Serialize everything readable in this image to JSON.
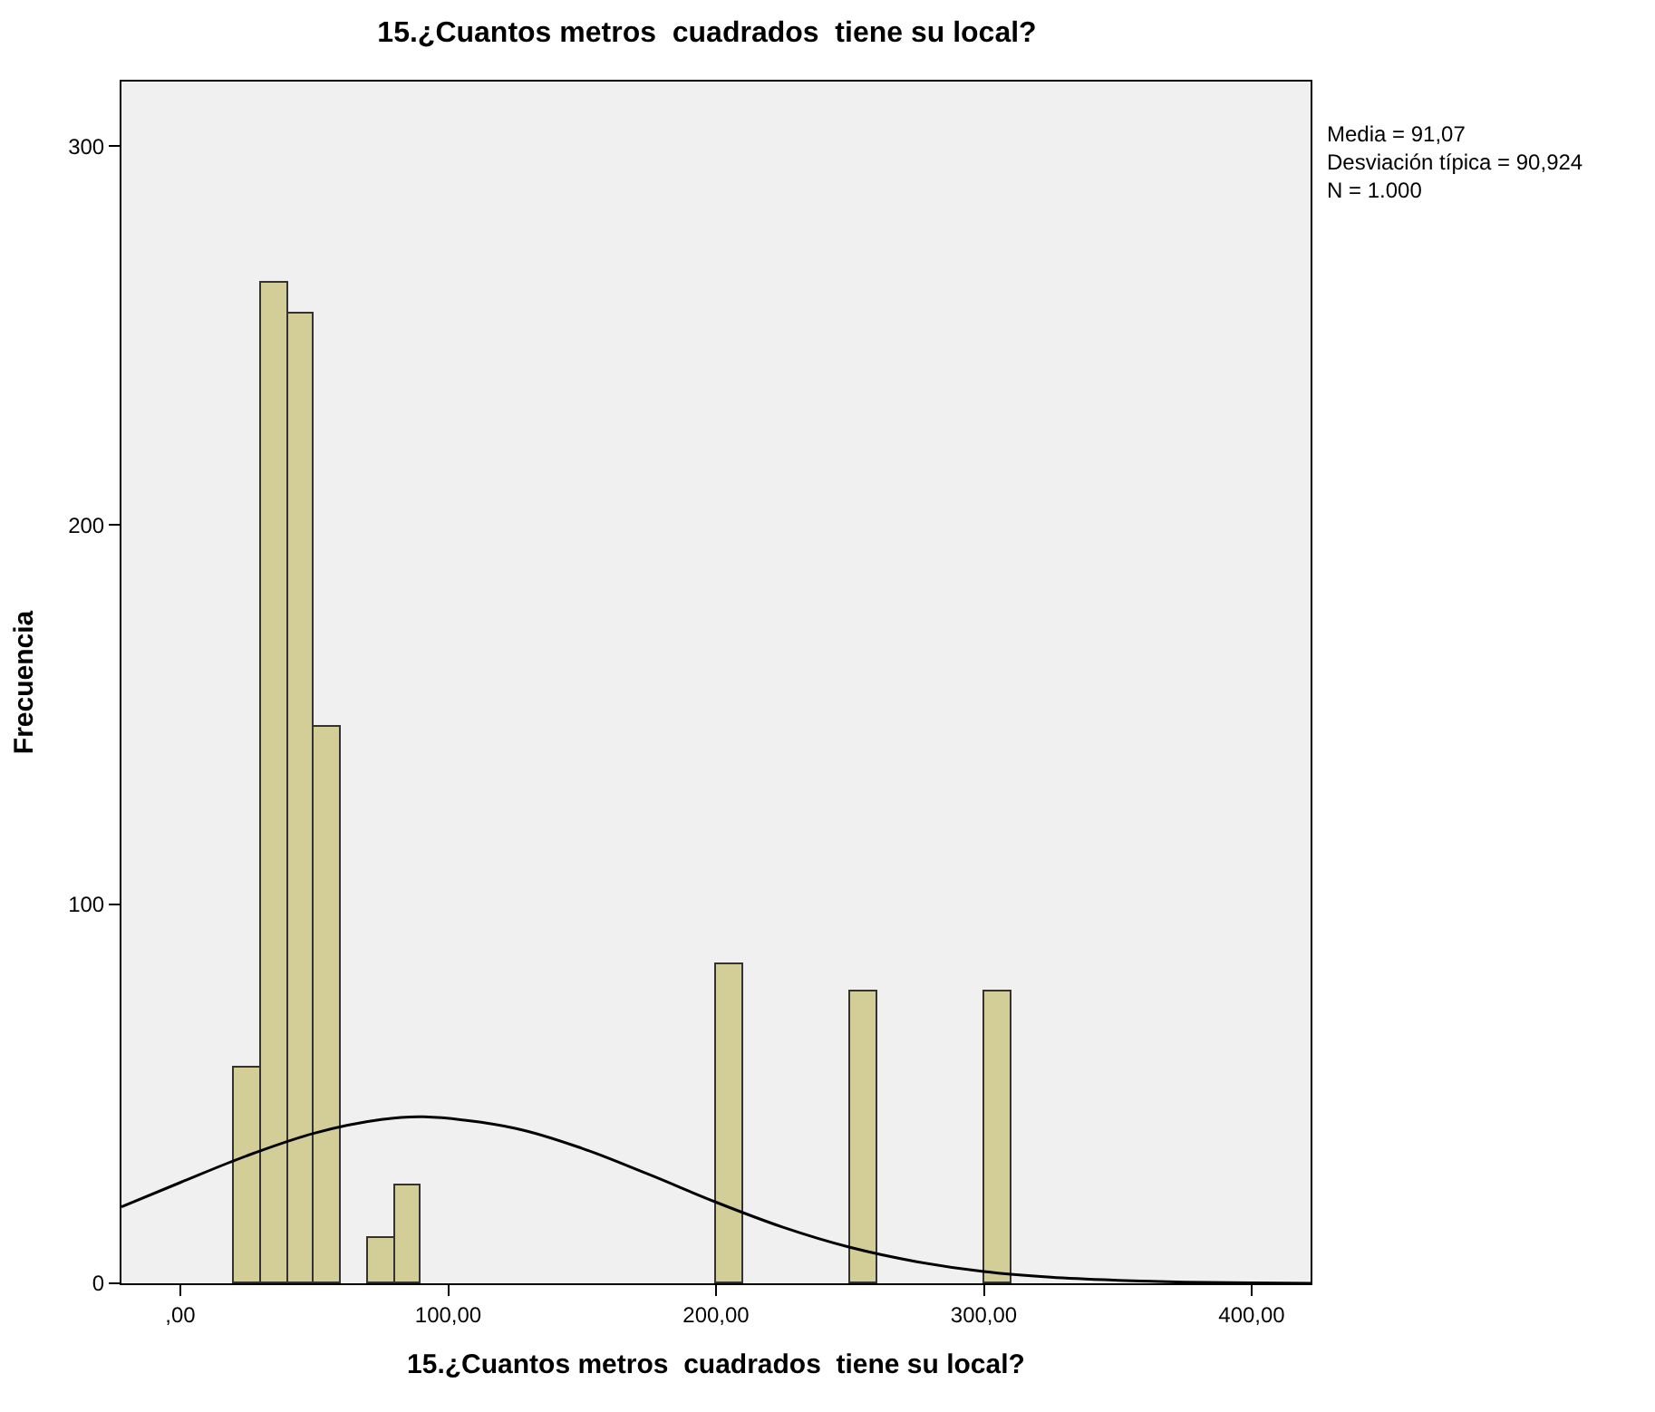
{
  "chart_data": {
    "type": "histogram",
    "title": "15.¿Cuantos metros  cuadrados  tiene su local?",
    "xlabel": "15.¿Cuantos metros  cuadrados  tiene su local?",
    "ylabel": "Frecuencia",
    "bins": [
      20,
      30,
      40,
      50,
      60,
      70,
      80,
      90,
      100,
      110,
      120,
      130,
      140,
      150,
      160,
      170,
      180,
      190,
      200,
      210,
      220,
      230,
      240,
      250,
      260,
      270,
      280,
      290,
      300,
      310
    ],
    "values": [
      57,
      264,
      256,
      147,
      0,
      12,
      26,
      0,
      0,
      0,
      0,
      0,
      0,
      0,
      0,
      0,
      0,
      0,
      84,
      0,
      0,
      0,
      0,
      77,
      0,
      0,
      0,
      0,
      77
    ],
    "color": "#d3ce97",
    "series": [
      {
        "type": "line",
        "color": "#000000",
        "x": [
          -22,
          0,
          25,
          50,
          75,
          91,
          125,
          150,
          175,
          200,
          225,
          250,
          275,
          300,
          325,
          350,
          375,
          400,
          422
        ],
        "values": [
          20.2,
          26.6,
          33.7,
          39.6,
          43.2,
          43.9,
          40.9,
          35.6,
          28.7,
          21.4,
          14.8,
          9.5,
          5.7,
          3.1,
          1.6,
          0.8,
          0.3,
          0.1,
          0
        ]
      }
    ],
    "xlim": [
      -22,
      422
    ],
    "ylim": [
      0,
      317
    ],
    "xticks": [
      {
        "value": 0,
        "label": ",00"
      },
      {
        "value": 100,
        "label": "100,00"
      },
      {
        "value": 200,
        "label": "200,00"
      },
      {
        "value": 300,
        "label": "300,00"
      },
      {
        "value": 400,
        "label": "400,00"
      }
    ],
    "yticks": [
      0,
      100,
      200,
      300
    ],
    "annotations": [
      "Media = 91,07\nDesviación típica = 90,924\nN = 1.000"
    ],
    "grid": false
  }
}
